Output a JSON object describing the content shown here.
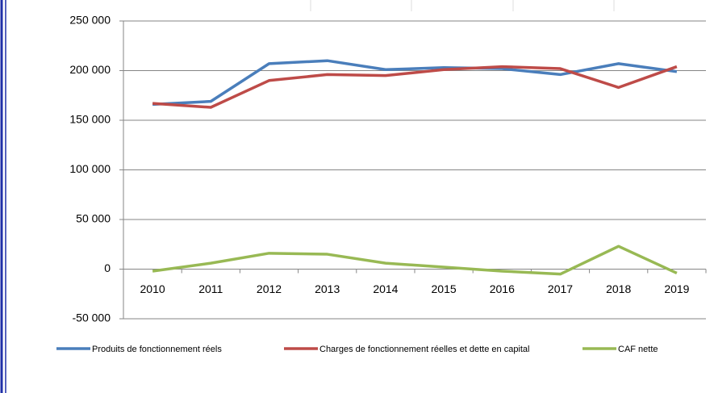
{
  "chart_data": {
    "type": "line",
    "categories": [
      "2010",
      "2011",
      "2012",
      "2013",
      "2014",
      "2015",
      "2016",
      "2017",
      "2018",
      "2019"
    ],
    "series": [
      {
        "name": "Produits de fonctionnement réels",
        "color": "#4a7ebb",
        "values": [
          166000,
          169000,
          207000,
          210000,
          201000,
          203000,
          202000,
          196000,
          207000,
          199000
        ]
      },
      {
        "name": "Charges de fonctionnement réelles et dette en capital",
        "color": "#be4b48",
        "values": [
          167000,
          163000,
          190000,
          196000,
          195000,
          201000,
          204000,
          202000,
          183000,
          204000
        ]
      },
      {
        "name": "CAF nette",
        "color": "#98b954",
        "values": [
          -2000,
          6000,
          16000,
          15000,
          6000,
          2000,
          -2000,
          -5000,
          23000,
          -4000
        ]
      }
    ],
    "ylim": [
      -50000,
      250000
    ],
    "yticks": [
      {
        "value": -50000,
        "label": "-50 000"
      },
      0,
      {
        "value": 50000,
        "label": "50 000"
      },
      {
        "value": 100000,
        "label": "100 000"
      },
      {
        "value": 150000,
        "label": "150 000"
      },
      {
        "value": 200000,
        "label": "200 000"
      },
      {
        "value": 250000,
        "label": "250 000"
      }
    ],
    "grid": true,
    "legend": "bottom"
  }
}
